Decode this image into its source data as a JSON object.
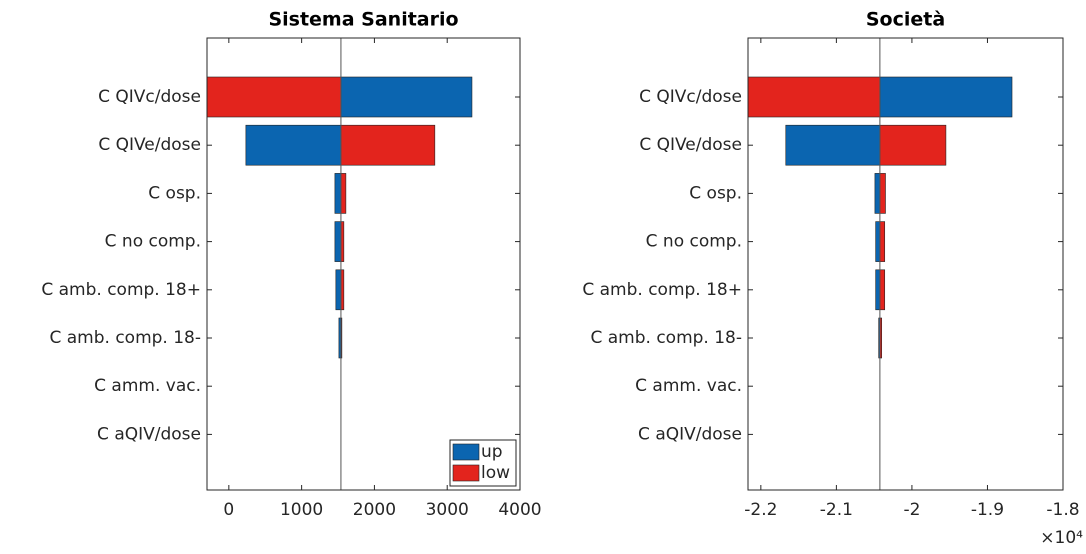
{
  "chart_data": [
    {
      "type": "tornado",
      "title": "Sistema Sanitario",
      "categories": [
        "C QIVc/dose",
        "C QIVe/dose",
        "C osp.",
        "C no comp.",
        "C amb. comp. 18+",
        "C amb. comp. 18-",
        "C amm. vac.",
        "C aQIV/dose"
      ],
      "baseline": 1540,
      "series": [
        {
          "name": "up",
          "color": "#0b65b0",
          "values": [
            3340,
            234,
            1457,
            1457,
            1470,
            1512,
            1540,
            1540
          ]
        },
        {
          "name": "low",
          "color": "#e3241d",
          "values": [
            -300,
            2830,
            1608,
            1580,
            1580,
            1553,
            1540,
            1540
          ]
        }
      ],
      "xlim": [
        -300,
        4000
      ],
      "xticks": [
        0,
        1000,
        2000,
        3000,
        4000
      ],
      "legend": "lower right"
    },
    {
      "type": "tornado",
      "title": "Società",
      "categories": [
        "C QIVc/dose",
        "C QIVe/dose",
        "C osp.",
        "C no comp.",
        "C amb. comp. 18+",
        "C amb. comp. 18-",
        "C amm. vac.",
        "C aQIV/dose"
      ],
      "baseline": -2.0424,
      "series": [
        {
          "name": "up",
          "color": "#0b65b0",
          "values": [
            -1.8675,
            -2.167,
            -2.049,
            -2.048,
            -2.048,
            -2.044,
            -2.0424,
            -2.0424
          ]
        },
        {
          "name": "low",
          "color": "#e3241d",
          "values": [
            -2.217,
            -1.955,
            -2.035,
            -2.036,
            -2.036,
            -2.04,
            -2.0424,
            -2.0424
          ]
        }
      ],
      "xlim": [
        -2.217,
        -1.8
      ],
      "xticks": [
        -2.2,
        -2.1,
        -2,
        -1.9,
        -1.8
      ],
      "x_exponent": "×10⁴"
    }
  ]
}
